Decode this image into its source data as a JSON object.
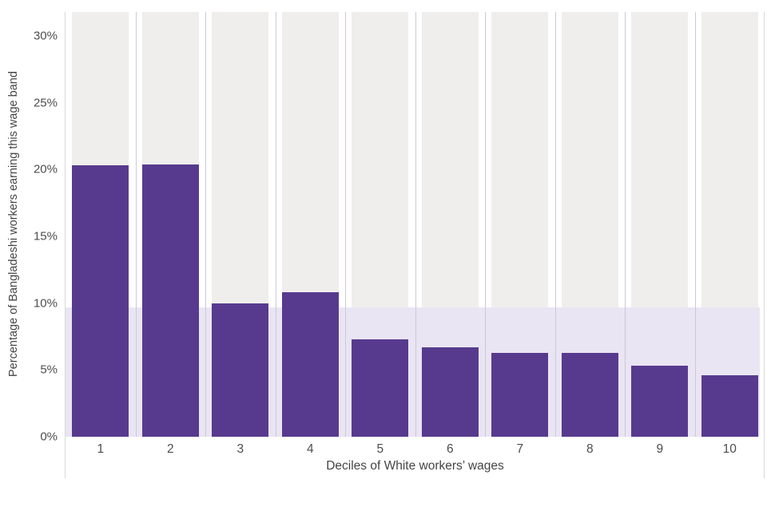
{
  "chart_data": {
    "type": "bar",
    "title": "",
    "categories": [
      "1",
      "2",
      "3",
      "4",
      "5",
      "6",
      "7",
      "8",
      "9",
      "10"
    ],
    "values": [
      20.3,
      20.4,
      10.0,
      10.8,
      7.3,
      6.7,
      6.3,
      6.3,
      5.3,
      4.6
    ],
    "xlabel": "Deciles of White workers’ wages",
    "ylabel": "Percentage of Bangladeshi workers earning this wage band",
    "y_ticks": [
      {
        "value": 0,
        "label": "0%"
      },
      {
        "value": 5,
        "label": "5%"
      },
      {
        "value": 10,
        "label": "10%"
      },
      {
        "value": 15,
        "label": "15%"
      },
      {
        "value": 20,
        "label": "20%"
      },
      {
        "value": 25,
        "label": "25%"
      },
      {
        "value": 30,
        "label": "30%"
      }
    ],
    "ylim": [
      0,
      31.8
    ],
    "legend": "none",
    "grid": "vertical-category-separators-only",
    "reference_band": {
      "from": 0,
      "to": 9.7
    },
    "colors": {
      "bar": "#573a8e",
      "column_background": "#efeeec",
      "reference_band": "#e9e5f3",
      "separator_line": "#cbc9d4",
      "frame_line": "#d9d9d9",
      "tick_text": "#4d4d4d",
      "axis_title_text": "#454545"
    }
  }
}
